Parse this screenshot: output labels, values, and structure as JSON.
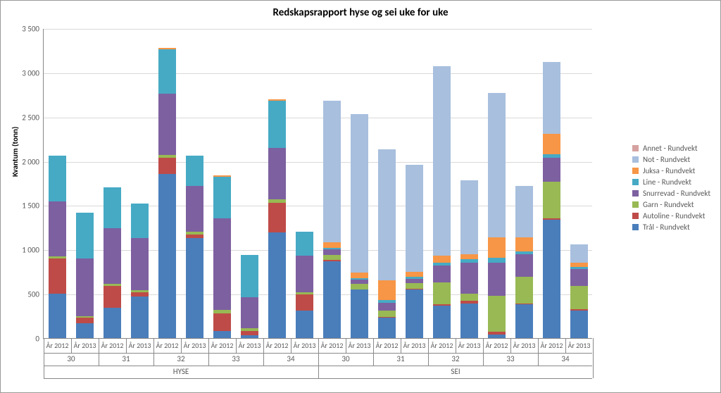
{
  "chart": {
    "type": "stacked-bar",
    "title": "Redskapsrapport hyse og sei uke for uke",
    "title_fontsize": 15,
    "background_color": "#ffffff",
    "grid_color": "#d9d9d9",
    "axis_color": "#888888",
    "text_color": "#595959",
    "y_axis": {
      "title": "Kvantum (tonn)",
      "min": 0,
      "max": 3500,
      "tick_step": 500,
      "tick_labels": [
        "0",
        "500",
        "1 000",
        "1 500",
        "2 000",
        "2 500",
        "3 000",
        "3 500"
      ]
    },
    "series": [
      {
        "key": "tral",
        "label": "Trål - Rundvekt",
        "color": "#4a7ebb"
      },
      {
        "key": "autoline",
        "label": "Autoline - Rundvekt",
        "color": "#be4b48"
      },
      {
        "key": "garn",
        "label": "Garn - Rundvekt",
        "color": "#98b954"
      },
      {
        "key": "snurrevad",
        "label": "Snurrevad - Rundvekt",
        "color": "#7d60a0"
      },
      {
        "key": "line",
        "label": "Line - Rundvekt",
        "color": "#46aac5"
      },
      {
        "key": "juksa",
        "label": "Juksa - Rundvekt",
        "color": "#f79646"
      },
      {
        "key": "not",
        "label": "Not - Rundvekt",
        "color": "#a8bfde"
      },
      {
        "key": "annet",
        "label": "Annet - Rundvekt",
        "color": "#d5a2a1"
      }
    ],
    "legend_order": [
      "annet",
      "not",
      "juksa",
      "line",
      "snurrevad",
      "garn",
      "autoline",
      "tral"
    ],
    "groups": [
      {
        "species": "HYSE",
        "weeks": [
          "30",
          "31",
          "32",
          "33",
          "34"
        ]
      },
      {
        "species": "SEI",
        "weeks": [
          "30",
          "31",
          "32",
          "33",
          "34"
        ]
      }
    ],
    "year_labels": [
      "År 2012",
      "År 2013"
    ],
    "bars": [
      {
        "species": "HYSE",
        "week": "30",
        "year": "År 2012",
        "values": {
          "tral": 500,
          "autoline": 400,
          "garn": 20,
          "snurrevad": 620,
          "line": 520,
          "juksa": 0,
          "not": 0,
          "annet": 0
        }
      },
      {
        "species": "HYSE",
        "week": "30",
        "year": "År 2013",
        "values": {
          "tral": 170,
          "autoline": 60,
          "garn": 20,
          "snurrevad": 650,
          "line": 520,
          "juksa": 0,
          "not": 0,
          "annet": 0
        }
      },
      {
        "species": "HYSE",
        "week": "31",
        "year": "År 2012",
        "values": {
          "tral": 340,
          "autoline": 250,
          "garn": 20,
          "snurrevad": 630,
          "line": 460,
          "juksa": 0,
          "not": 0,
          "annet": 0
        }
      },
      {
        "species": "HYSE",
        "week": "31",
        "year": "År 2013",
        "values": {
          "tral": 470,
          "autoline": 50,
          "garn": 20,
          "snurrevad": 590,
          "line": 390,
          "juksa": 0,
          "not": 0,
          "annet": 0
        }
      },
      {
        "species": "HYSE",
        "week": "32",
        "year": "År 2012",
        "values": {
          "tral": 1850,
          "autoline": 190,
          "garn": 30,
          "snurrevad": 690,
          "line": 500,
          "juksa": 20,
          "not": 0,
          "annet": 0
        }
      },
      {
        "species": "HYSE",
        "week": "32",
        "year": "År 2013",
        "values": {
          "tral": 1130,
          "autoline": 40,
          "garn": 30,
          "snurrevad": 520,
          "line": 340,
          "juksa": 0,
          "not": 0,
          "annet": 0
        }
      },
      {
        "species": "HYSE",
        "week": "33",
        "year": "År 2012",
        "values": {
          "tral": 80,
          "autoline": 200,
          "garn": 40,
          "snurrevad": 1030,
          "line": 470,
          "juksa": 20,
          "not": 0,
          "annet": 0
        }
      },
      {
        "species": "HYSE",
        "week": "33",
        "year": "År 2013",
        "values": {
          "tral": 30,
          "autoline": 50,
          "garn": 30,
          "snurrevad": 350,
          "line": 480,
          "juksa": 0,
          "not": 0,
          "annet": 0
        }
      },
      {
        "species": "HYSE",
        "week": "34",
        "year": "År 2012",
        "values": {
          "tral": 1190,
          "autoline": 340,
          "garn": 40,
          "snurrevad": 580,
          "line": 530,
          "juksa": 20,
          "not": 0,
          "annet": 0
        }
      },
      {
        "species": "HYSE",
        "week": "34",
        "year": "År 2013",
        "values": {
          "tral": 310,
          "autoline": 180,
          "garn": 30,
          "snurrevad": 410,
          "line": 270,
          "juksa": 0,
          "not": 0,
          "annet": 0
        }
      },
      {
        "species": "SEI",
        "week": "30",
        "year": "År 2012",
        "values": {
          "tral": 870,
          "autoline": 10,
          "garn": 60,
          "snurrevad": 60,
          "line": 20,
          "juksa": 60,
          "not": 1600,
          "annet": 0
        }
      },
      {
        "species": "SEI",
        "week": "30",
        "year": "År 2013",
        "values": {
          "tral": 550,
          "autoline": 0,
          "garn": 60,
          "snurrevad": 50,
          "line": 20,
          "juksa": 60,
          "not": 1790,
          "annet": 0
        }
      },
      {
        "species": "SEI",
        "week": "31",
        "year": "År 2012",
        "values": {
          "tral": 230,
          "autoline": 10,
          "garn": 70,
          "snurrevad": 90,
          "line": 30,
          "juksa": 220,
          "not": 1480,
          "annet": 0
        }
      },
      {
        "species": "SEI",
        "week": "31",
        "year": "År 2013",
        "values": {
          "tral": 550,
          "autoline": 10,
          "garn": 60,
          "snurrevad": 50,
          "line": 20,
          "juksa": 60,
          "not": 1210,
          "annet": 0
        }
      },
      {
        "species": "SEI",
        "week": "32",
        "year": "År 2012",
        "values": {
          "tral": 370,
          "autoline": 10,
          "garn": 250,
          "snurrevad": 190,
          "line": 30,
          "juksa": 80,
          "not": 2140,
          "annet": 0
        }
      },
      {
        "species": "SEI",
        "week": "32",
        "year": "År 2013",
        "values": {
          "tral": 390,
          "autoline": 30,
          "garn": 80,
          "snurrevad": 350,
          "line": 40,
          "juksa": 60,
          "not": 830,
          "annet": 0
        }
      },
      {
        "species": "SEI",
        "week": "33",
        "year": "År 2012",
        "values": {
          "tral": 40,
          "autoline": 30,
          "garn": 410,
          "snurrevad": 370,
          "line": 60,
          "juksa": 230,
          "not": 1630,
          "annet": 0
        }
      },
      {
        "species": "SEI",
        "week": "33",
        "year": "År 2013",
        "values": {
          "tral": 380,
          "autoline": 10,
          "garn": 300,
          "snurrevad": 260,
          "line": 30,
          "juksa": 160,
          "not": 580,
          "annet": 0
        }
      },
      {
        "species": "SEI",
        "week": "34",
        "year": "År 2012",
        "values": {
          "tral": 1340,
          "autoline": 10,
          "garn": 420,
          "snurrevad": 270,
          "line": 40,
          "juksa": 230,
          "not": 810,
          "annet": 0
        }
      },
      {
        "species": "SEI",
        "week": "34",
        "year": "År 2013",
        "values": {
          "tral": 310,
          "autoline": 20,
          "garn": 260,
          "snurrevad": 190,
          "line": 20,
          "juksa": 50,
          "not": 210,
          "annet": 0
        }
      }
    ],
    "bar_width_ratio": 0.65,
    "label_fontsize": 11
  }
}
